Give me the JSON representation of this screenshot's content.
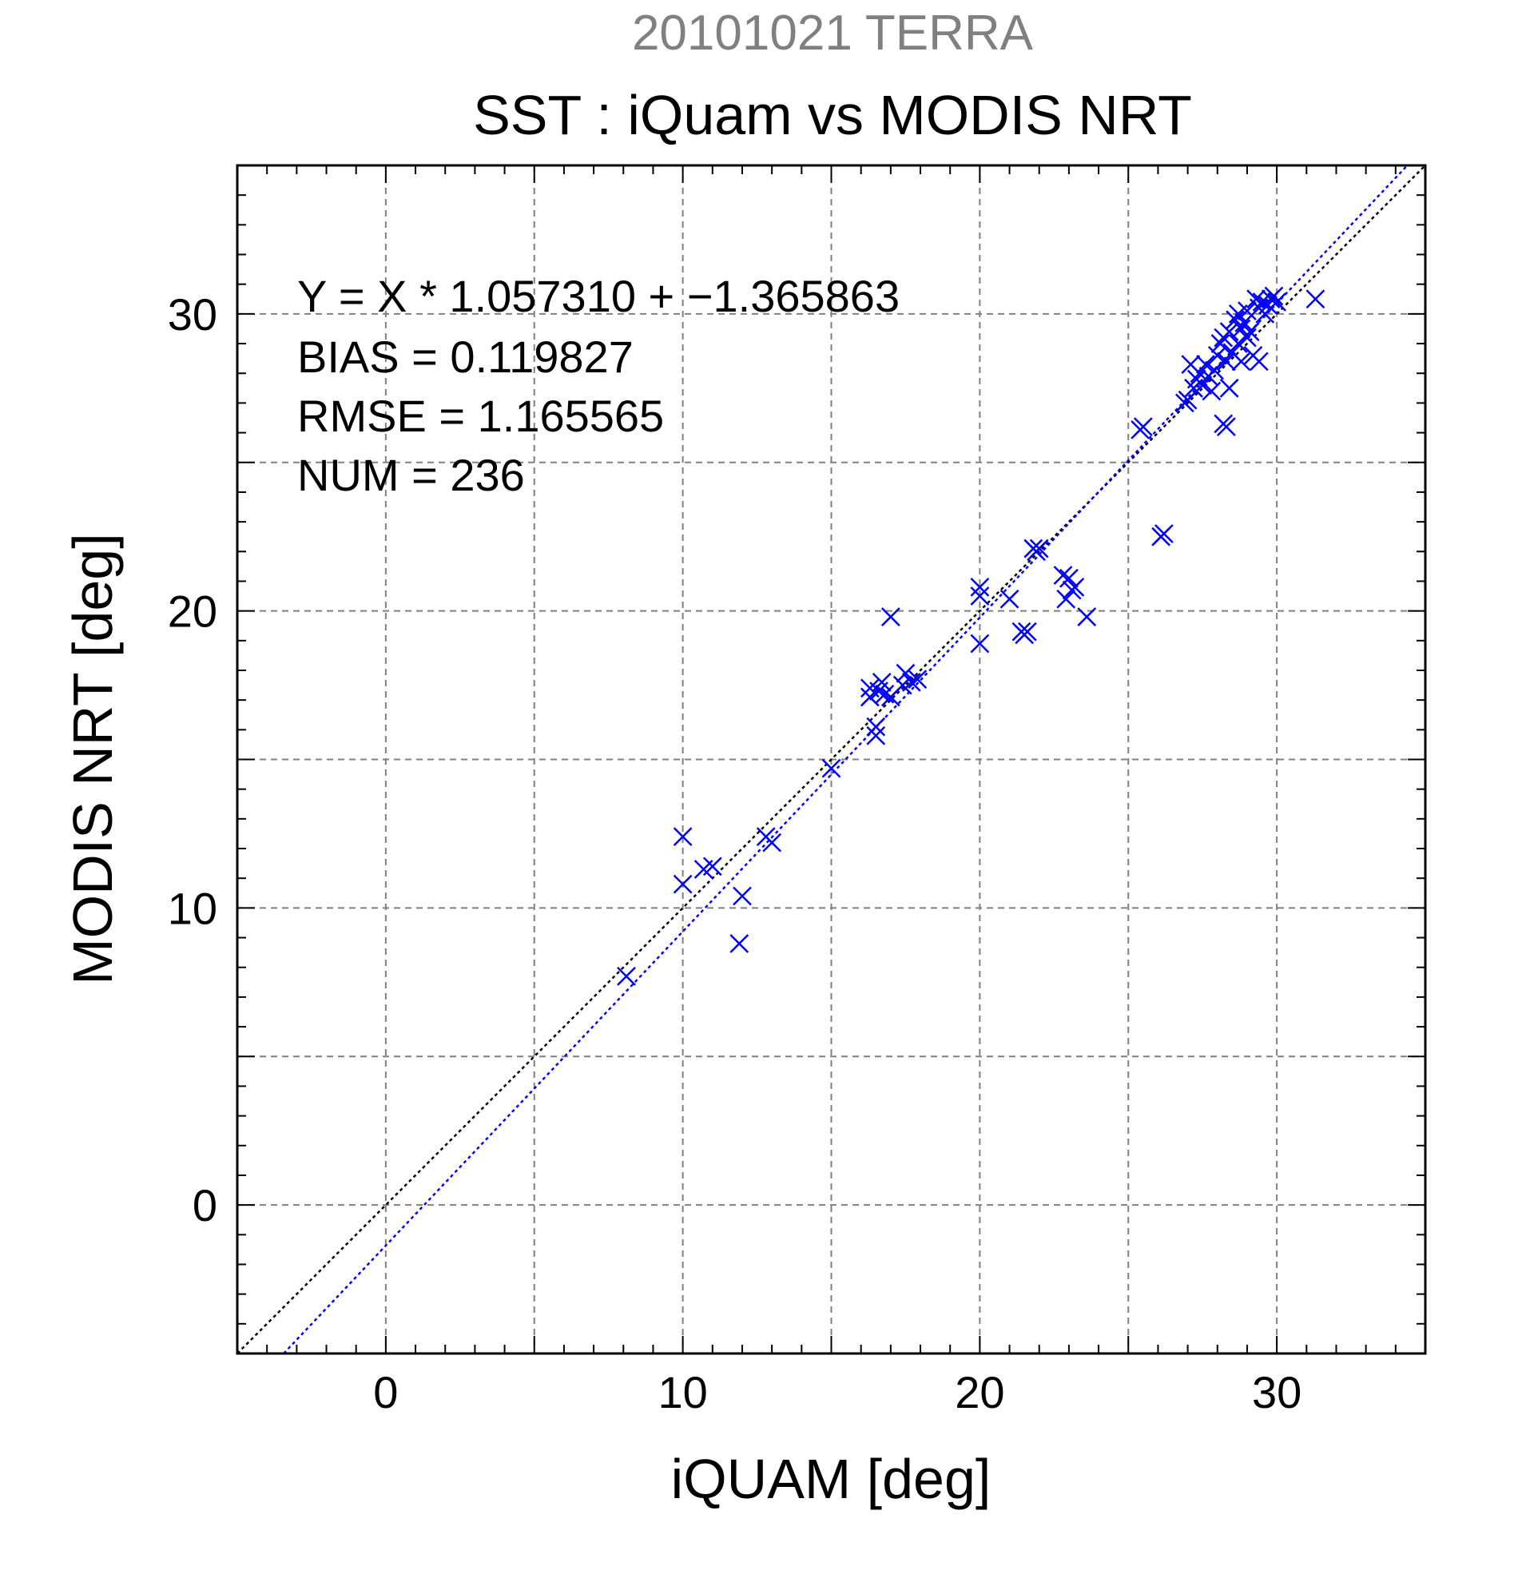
{
  "chart_data": {
    "type": "scatter",
    "header": "20101021 TERRA",
    "title": "SST : iQuam vs MODIS NRT",
    "xlabel": "iQUAM [deg]",
    "ylabel": "MODIS NRT [deg]",
    "xlim": [
      -5,
      35
    ],
    "ylim": [
      -5,
      35
    ],
    "xticks": [
      "0",
      "10",
      "20",
      "30"
    ],
    "yticks": [
      "0",
      "10",
      "20",
      "30"
    ],
    "grid": true,
    "stats": [
      "Y = X * 1.057310 + −1.365863",
      "BIAS = 0.119827",
      "RMSE = 1.165565",
      "NUM = 236"
    ],
    "regression": {
      "slope": 1.05731,
      "intercept": -1.365863,
      "color": "#0000ff"
    },
    "identity_line": {
      "color": "#000000"
    },
    "marker_color": "#0000ff",
    "header_color": "#808080",
    "points": [
      [
        8.1,
        7.7
      ],
      [
        10.0,
        12.4
      ],
      [
        10.0,
        10.8
      ],
      [
        10.7,
        11.3
      ],
      [
        11.0,
        11.4
      ],
      [
        11.9,
        8.8
      ],
      [
        12.0,
        10.4
      ],
      [
        12.8,
        12.4
      ],
      [
        13.0,
        12.2
      ],
      [
        15.0,
        14.7
      ],
      [
        16.3,
        17.4
      ],
      [
        16.3,
        17.1
      ],
      [
        16.5,
        16.1
      ],
      [
        16.5,
        15.8
      ],
      [
        16.6,
        17.3
      ],
      [
        16.7,
        17.6
      ],
      [
        16.8,
        17.2
      ],
      [
        17.0,
        17.1
      ],
      [
        17.0,
        19.8
      ],
      [
        17.4,
        17.5
      ],
      [
        17.5,
        17.9
      ],
      [
        17.7,
        17.6
      ],
      [
        17.9,
        17.7
      ],
      [
        20.0,
        20.8
      ],
      [
        20.0,
        20.5
      ],
      [
        20.0,
        18.9
      ],
      [
        21.0,
        20.4
      ],
      [
        21.4,
        19.3
      ],
      [
        21.5,
        19.2
      ],
      [
        21.6,
        19.3
      ],
      [
        21.8,
        22.1
      ],
      [
        21.9,
        22.0
      ],
      [
        22.0,
        22.1
      ],
      [
        22.8,
        21.2
      ],
      [
        22.9,
        20.4
      ],
      [
        23.0,
        21.1
      ],
      [
        23.1,
        20.7
      ],
      [
        23.2,
        20.8
      ],
      [
        23.6,
        19.8
      ],
      [
        25.4,
        26.1
      ],
      [
        25.5,
        26.2
      ],
      [
        26.1,
        22.5
      ],
      [
        26.2,
        22.6
      ],
      [
        26.9,
        27.0
      ],
      [
        27.0,
        27.1
      ],
      [
        27.1,
        28.3
      ],
      [
        27.2,
        27.5
      ],
      [
        27.3,
        27.8
      ],
      [
        27.4,
        28.0
      ],
      [
        27.5,
        27.6
      ],
      [
        27.6,
        28.3
      ],
      [
        27.7,
        27.9
      ],
      [
        27.8,
        27.4
      ],
      [
        27.9,
        28.1
      ],
      [
        28.0,
        28.6
      ],
      [
        28.1,
        29.0
      ],
      [
        28.2,
        29.2
      ],
      [
        28.2,
        26.3
      ],
      [
        28.3,
        26.2
      ],
      [
        28.3,
        28.4
      ],
      [
        28.4,
        27.5
      ],
      [
        28.4,
        29.4
      ],
      [
        28.5,
        28.7
      ],
      [
        28.6,
        29.8
      ],
      [
        28.7,
        29.0
      ],
      [
        28.7,
        30.0
      ],
      [
        28.8,
        28.4
      ],
      [
        28.8,
        29.5
      ],
      [
        28.9,
        29.7
      ],
      [
        29.0,
        29.2
      ],
      [
        29.0,
        30.1
      ],
      [
        29.1,
        29.4
      ],
      [
        29.2,
        28.6
      ],
      [
        29.3,
        30.5
      ],
      [
        29.4,
        28.4
      ],
      [
        29.4,
        30.2
      ],
      [
        29.5,
        30.4
      ],
      [
        29.6,
        30.0
      ],
      [
        29.7,
        30.3
      ],
      [
        29.8,
        30.5
      ],
      [
        29.9,
        30.6
      ],
      [
        30.0,
        30.4
      ],
      [
        31.3,
        30.5
      ]
    ]
  }
}
